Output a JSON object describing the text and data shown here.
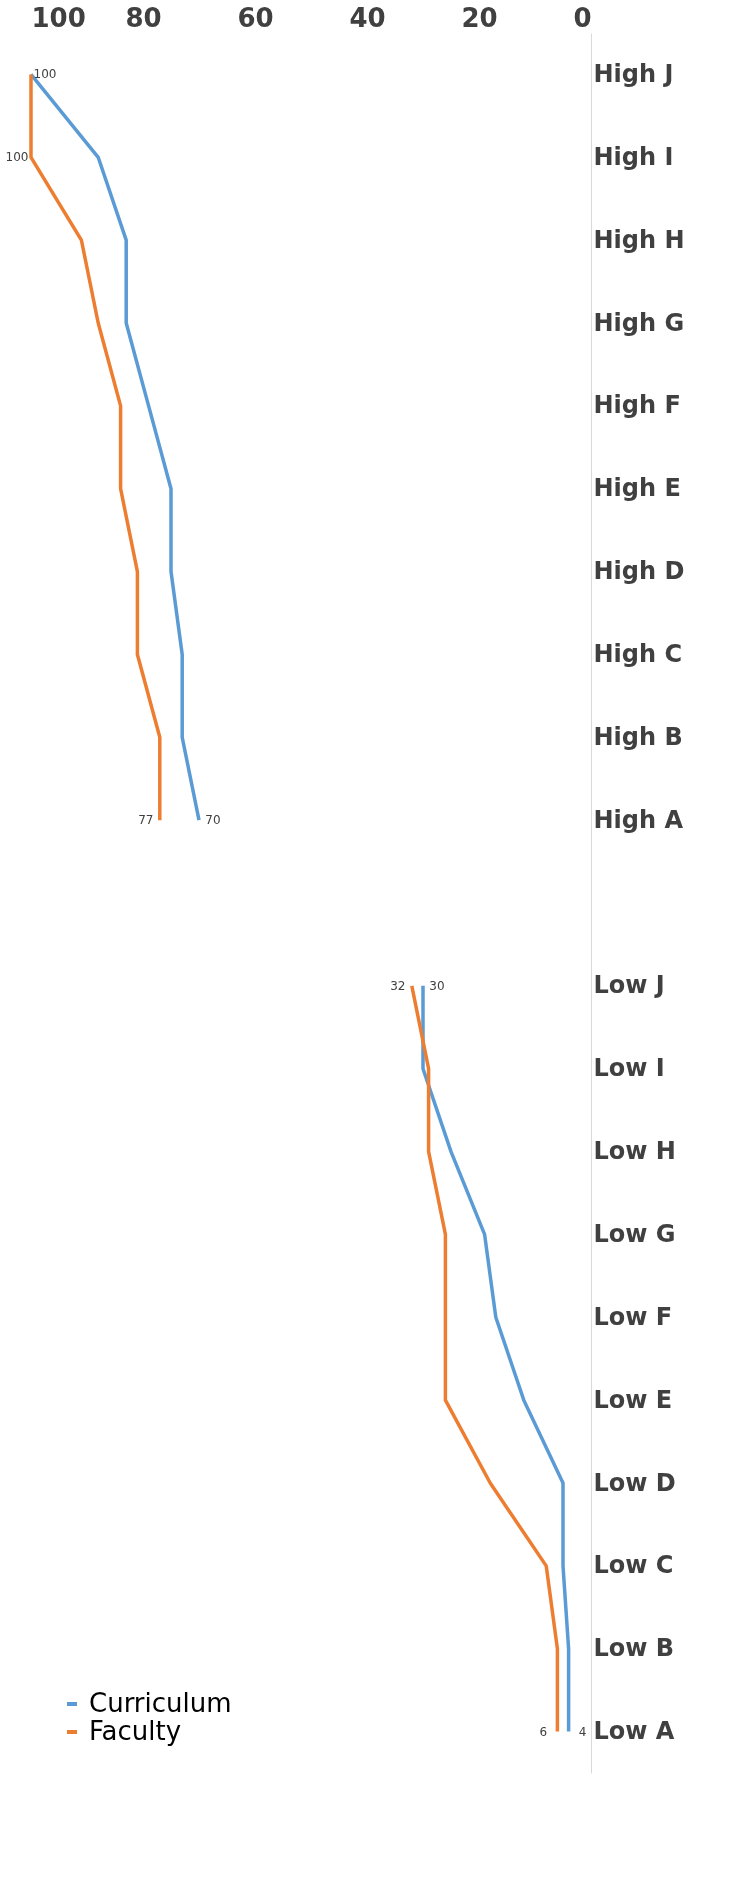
{
  "chart_data": {
    "type": "line",
    "categories": [
      "High J",
      "High I",
      "High H",
      "High G",
      "High F",
      "High E",
      "High D",
      "High C",
      "High B",
      "High A",
      null,
      "Low J",
      "Low I",
      "Low H",
      "Low G",
      "Low F",
      "Low E",
      "Low D",
      "Low C",
      "Low B",
      "Low A"
    ],
    "series": [
      {
        "name": "Curriculum",
        "color": "#5b9bd5",
        "values": [
          100,
          88,
          83,
          83,
          79,
          75,
          75,
          73,
          73,
          70,
          null,
          30,
          30,
          25,
          19,
          17,
          12,
          5,
          5,
          4,
          4
        ],
        "value_labels": [
          "100",
          null,
          null,
          null,
          null,
          null,
          null,
          null,
          null,
          "70",
          null,
          "30",
          null,
          null,
          null,
          null,
          null,
          null,
          null,
          null,
          "4"
        ]
      },
      {
        "name": "Faculty",
        "color": "#ed7d31",
        "values": [
          100,
          100,
          91,
          88,
          84,
          84,
          81,
          81,
          77,
          77,
          null,
          32,
          29,
          29,
          26,
          26,
          26,
          18,
          8,
          6,
          6
        ],
        "value_labels": [
          null,
          "100",
          null,
          null,
          null,
          null,
          null,
          null,
          null,
          "77",
          null,
          "32",
          null,
          null,
          null,
          null,
          null,
          null,
          null,
          null,
          "6"
        ]
      }
    ],
    "orientation": "horizontal",
    "xlim": [
      100,
      0
    ],
    "xticks": [
      100,
      80,
      60,
      40,
      20,
      0
    ],
    "grid": false,
    "legend": "bottom left",
    "marker": "none",
    "line_style": "solid"
  }
}
